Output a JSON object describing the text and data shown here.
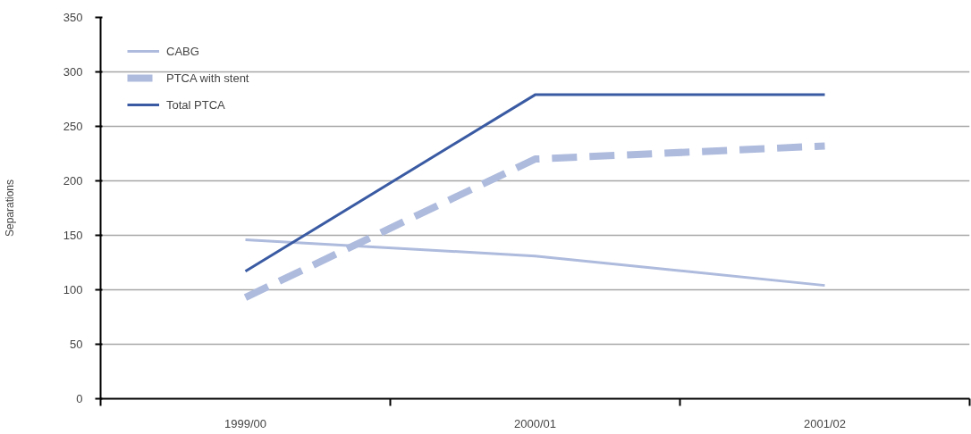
{
  "chart_data": {
    "type": "line",
    "ylabel": "Separations",
    "categories": [
      "1999/00",
      "2000/01",
      "2001/02"
    ],
    "series": [
      {
        "name": "CABG",
        "color": "#aebbdd",
        "line_style": "solid",
        "values": [
          146,
          131,
          104
        ]
      },
      {
        "name": "PTCA with stent",
        "color": "#aebbdd",
        "line_style": "dashed",
        "values": [
          93,
          220,
          232
        ]
      },
      {
        "name": "Total PTCA",
        "color": "#3a5ba3",
        "line_style": "solid",
        "values": [
          117,
          279,
          279
        ]
      }
    ],
    "ylim": [
      0,
      350
    ],
    "yticks": [
      0,
      50,
      100,
      150,
      200,
      250,
      300,
      350
    ],
    "grid": "y",
    "legend": "top left"
  }
}
